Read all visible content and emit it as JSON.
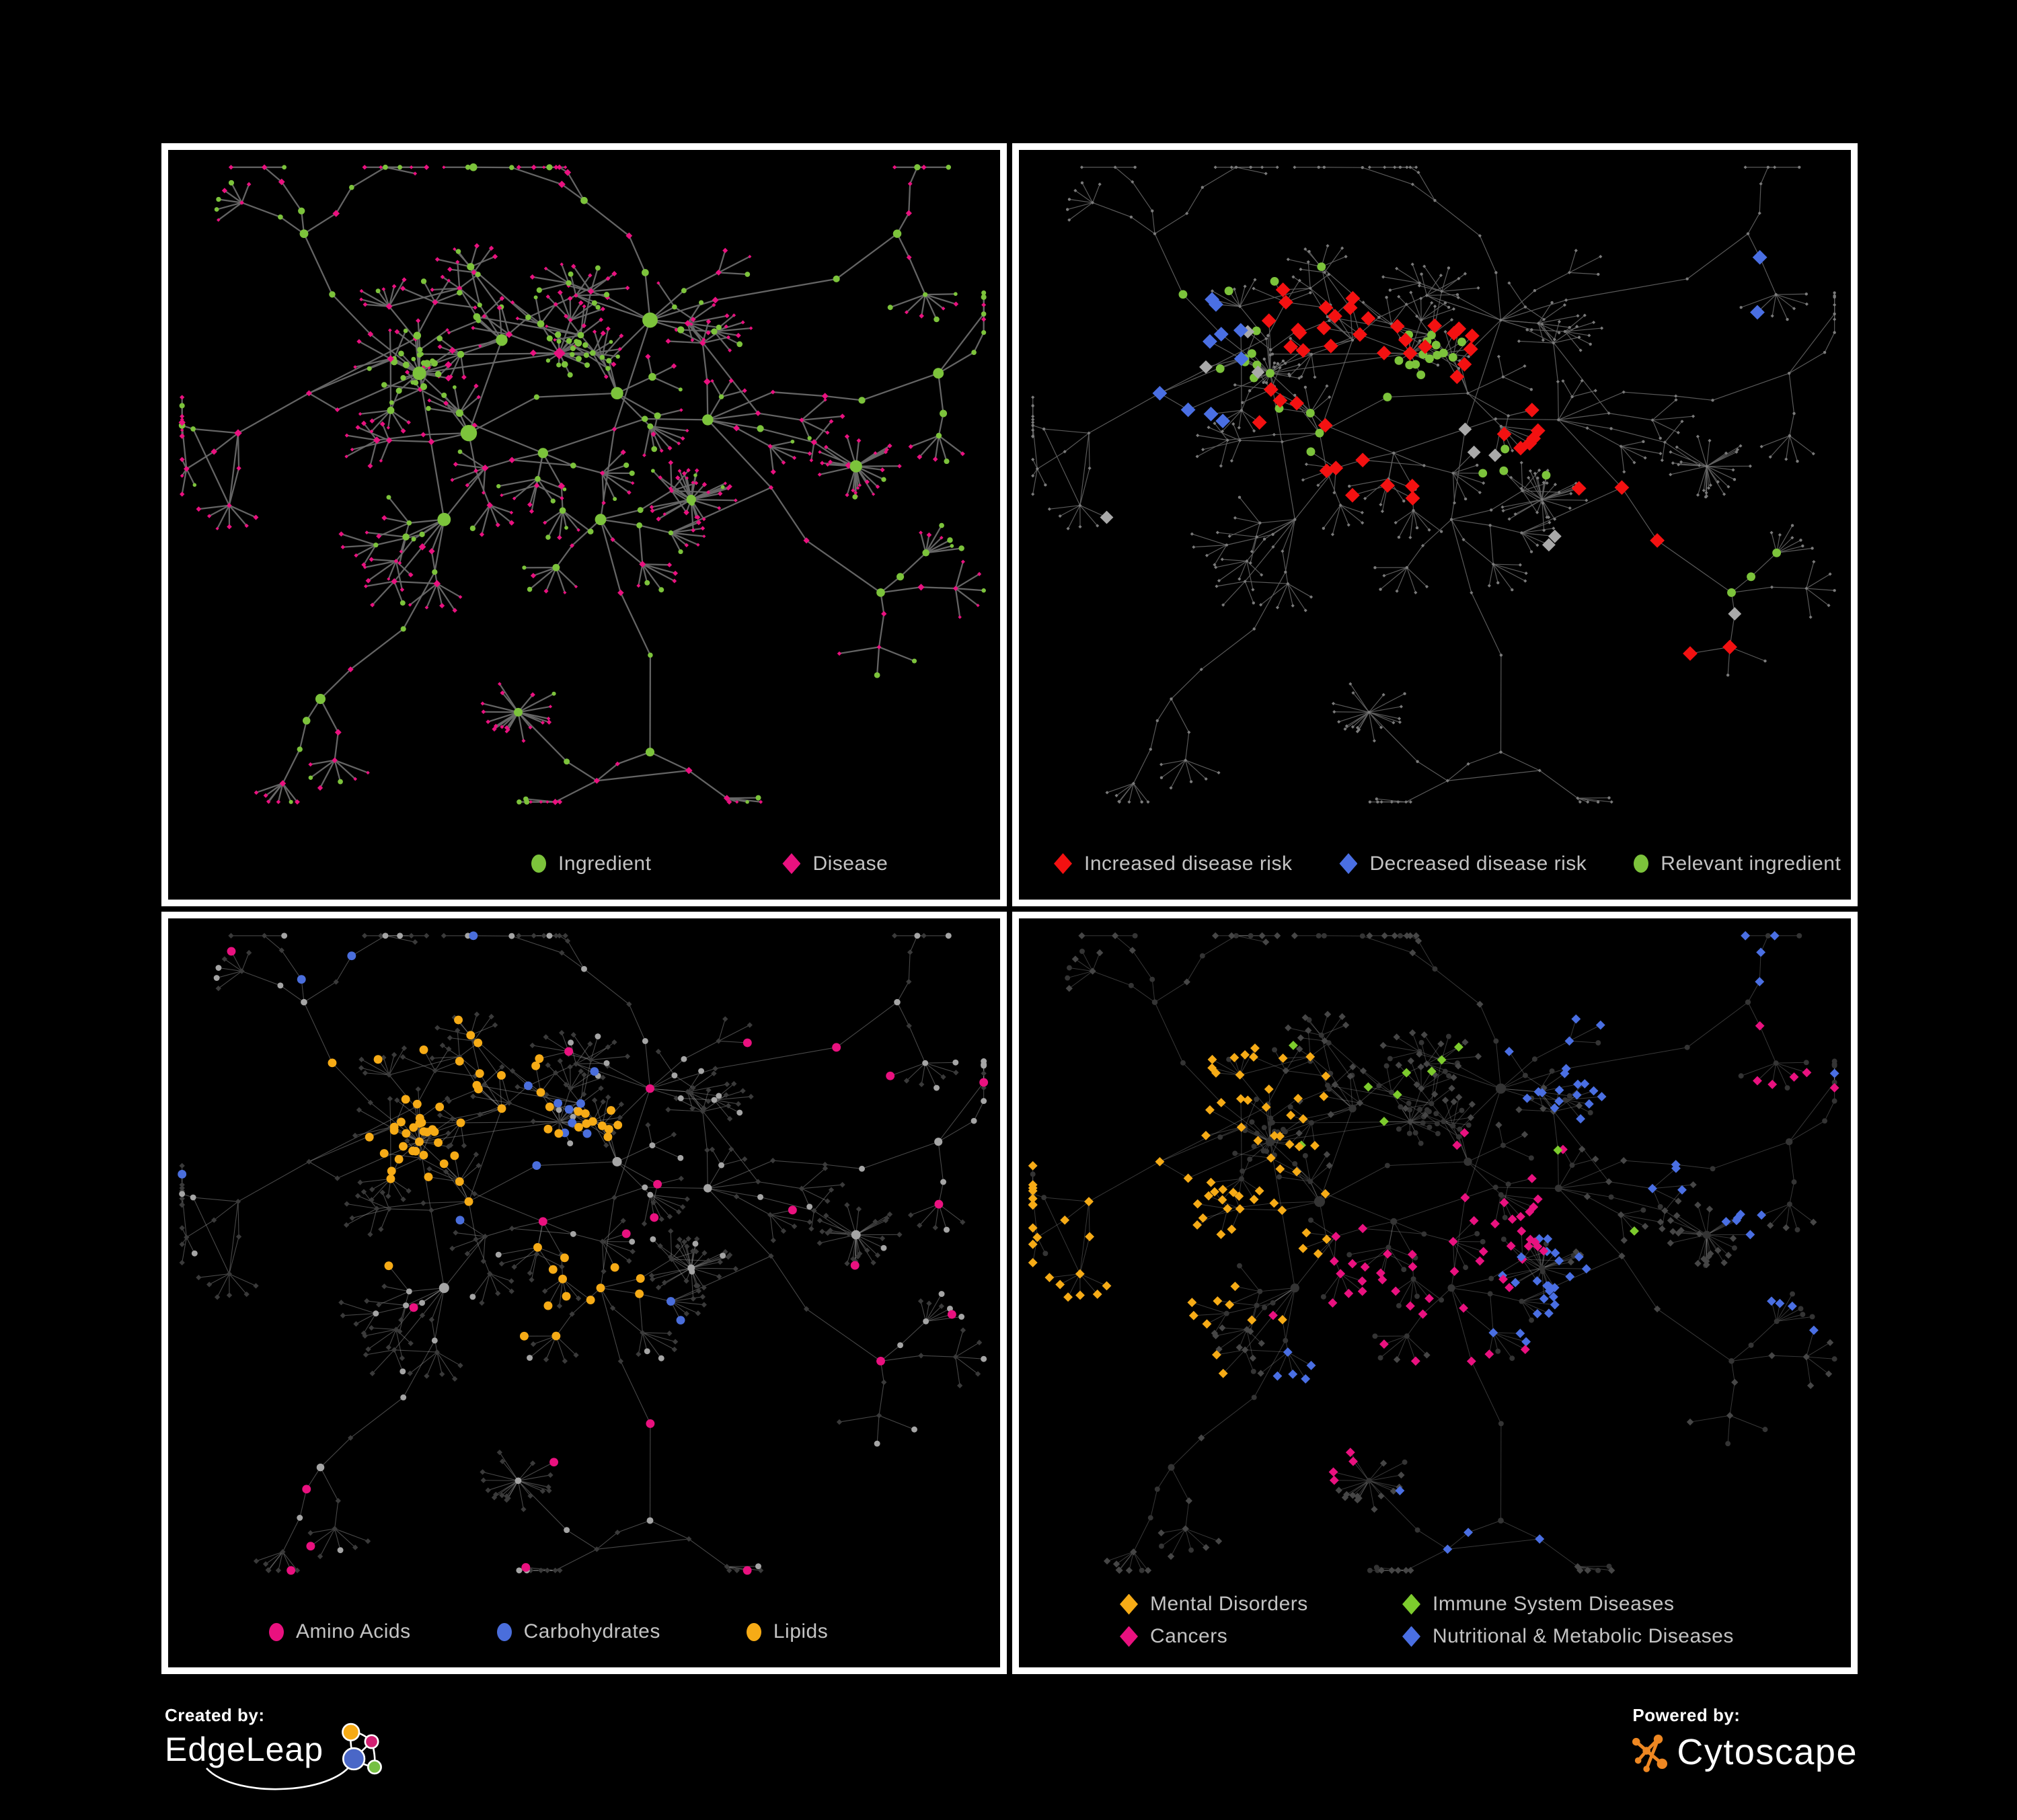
{
  "page": {
    "background": "#000000",
    "panel_border": "#ffffff",
    "legend_text_color": "#c3c3c3"
  },
  "palette": {
    "ingredient_green": "#7cc33b",
    "disease_pink": "#e9117f",
    "increased_red": "#f31111",
    "decreased_blue": "#4a6fe3",
    "unknown_gray": "#a9a9a9",
    "amino_pink": "#e9117f",
    "carb_blue": "#4a6edc",
    "lipid_orange": "#f6ab16",
    "mental_orange": "#f6ab16",
    "immune_green": "#7dcb2d",
    "cancer_pink": "#e9117f",
    "nutritional_blue": "#4a6fe3",
    "skeleton_node_gray": "#7b7b7b",
    "muted_ingredient_gray": "#a5a5a5",
    "muted_disease_dark": "#3a3a3a",
    "muted_circle_dark": "#343434",
    "p4_disease_gray": "#464646",
    "edge_p1": "#696969",
    "edge_p2": "#646464",
    "edge_p3": "#8f8f8f",
    "edge_p4": "#a0a0a0"
  },
  "panels": [
    {
      "name": "ingredient-disease",
      "legend": [
        {
          "label": "Ingredient",
          "shape": "circle",
          "color": "#7cc33b"
        },
        {
          "label": "Disease",
          "shape": "diamond",
          "color": "#e9117f"
        }
      ]
    },
    {
      "name": "disease-risk",
      "legend": [
        {
          "label": "Increased disease risk",
          "shape": "diamond",
          "color": "#f31111"
        },
        {
          "label": "Decreased disease risk",
          "shape": "diamond",
          "color": "#4a6fe3"
        },
        {
          "label": "Relevant ingredient",
          "shape": "circle",
          "color": "#7cc33b"
        }
      ]
    },
    {
      "name": "macronutrient-classes",
      "legend": [
        {
          "label": "Amino Acids",
          "shape": "circle",
          "color": "#e9117f"
        },
        {
          "label": "Carbohydrates",
          "shape": "circle",
          "color": "#4a6edc"
        },
        {
          "label": "Lipids",
          "shape": "circle",
          "color": "#f6ab16"
        }
      ]
    },
    {
      "name": "disease-categories",
      "legend": [
        {
          "label": "Mental Disorders",
          "shape": "diamond",
          "color": "#f6ab16"
        },
        {
          "label": "Immune System Diseases",
          "shape": "diamond",
          "color": "#7dcb2d"
        },
        {
          "label": "Cancers",
          "shape": "diamond",
          "color": "#e9117f"
        },
        {
          "label": "Nutritional & Metabolic Diseases",
          "shape": "diamond",
          "color": "#4a6fe3"
        }
      ]
    }
  ],
  "footer": {
    "created_by": {
      "caption": "Created by:",
      "brand": "EdgeLeap"
    },
    "powered_by": {
      "caption": "Powered by:",
      "brand": "Cytoscape"
    }
  }
}
